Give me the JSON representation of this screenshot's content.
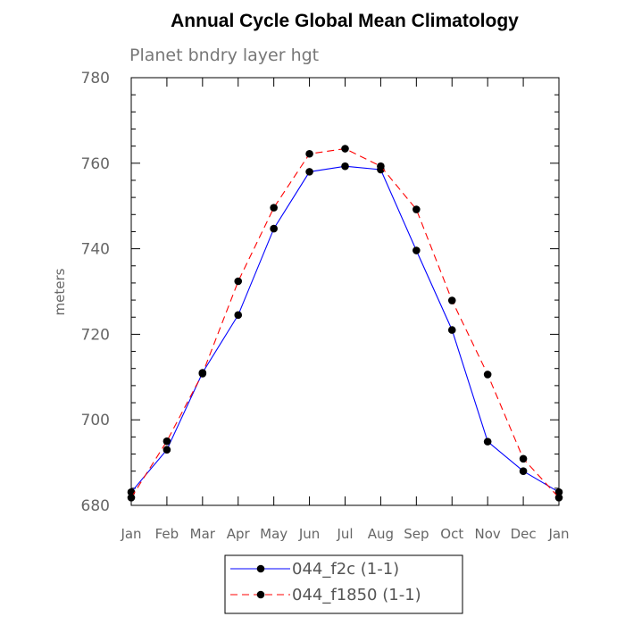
{
  "chart_data": {
    "type": "line",
    "title": "Annual Cycle Global Mean Climatology",
    "subtitle": "Planet bndry layer hgt",
    "xlabel": "",
    "ylabel": "meters",
    "categories": [
      "Jan",
      "Feb",
      "Mar",
      "Apr",
      "May",
      "Jun",
      "Jul",
      "Aug",
      "Sep",
      "Oct",
      "Nov",
      "Dec",
      "Jan"
    ],
    "ylim": [
      680,
      780
    ],
    "yticks": [
      680,
      700,
      720,
      740,
      760,
      780
    ],
    "series": [
      {
        "name": "044_f2c (1-1)",
        "color": "#0000ff",
        "dash": "solid",
        "values": [
          683.1,
          693.0,
          711.0,
          724.5,
          744.7,
          758.0,
          759.3,
          758.5,
          739.6,
          721.0,
          694.9,
          688.0,
          683.1
        ]
      },
      {
        "name": "044_f1850 (1-1)",
        "color": "#ff0000",
        "dash": "dashed",
        "values": [
          681.8,
          695.0,
          710.8,
          732.4,
          749.6,
          762.2,
          763.4,
          759.3,
          749.2,
          727.9,
          710.6,
          690.9,
          681.8
        ]
      }
    ],
    "grid": false,
    "legend_position": "bottom-center"
  }
}
